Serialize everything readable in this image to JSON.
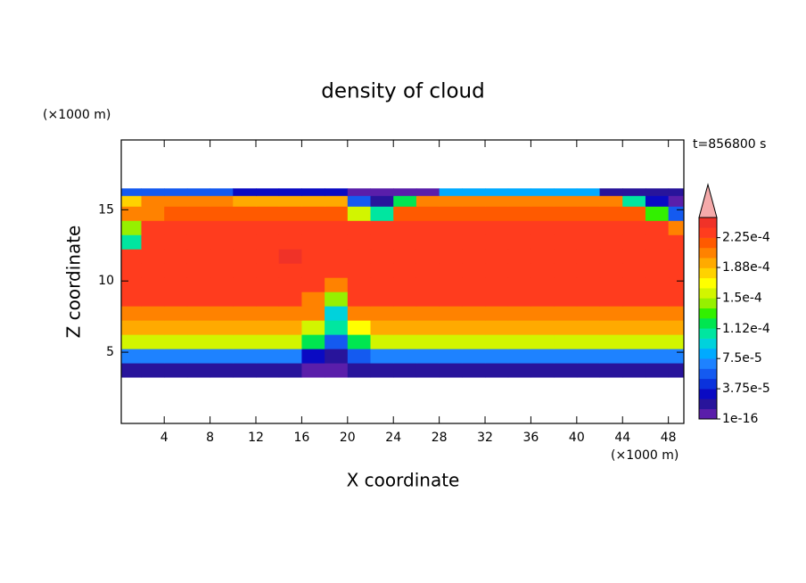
{
  "chart_data": {
    "type": "contour",
    "title": "density of cloud",
    "xlabel": "X coordinate",
    "ylabel": "Z coordinate",
    "xunit": "(×1000 m)",
    "yunit": "(×1000 m)",
    "annotation": "t=856800 s",
    "xlim": [
      0.25,
      49.35
    ],
    "ylim": [
      0,
      19.9
    ],
    "xticks": [
      4,
      8,
      12,
      16,
      20,
      24,
      28,
      32,
      36,
      40,
      44,
      48
    ],
    "yticks": [
      5,
      10,
      15
    ],
    "x": [
      1,
      3,
      5,
      7,
      9,
      11,
      13,
      15,
      17,
      19,
      21,
      23,
      25,
      27,
      29,
      31,
      33,
      35,
      37,
      39,
      41,
      43,
      45,
      47,
      49
    ],
    "y": [
      3.75,
      4.75,
      5.75,
      6.75,
      7.75,
      8.75,
      9.75,
      10.75,
      11.75,
      12.75,
      13.75,
      14.75,
      15.75,
      16.25
    ],
    "values": [
      [
        2e-05,
        2e-05,
        2e-05,
        2e-05,
        2e-05,
        2e-05,
        2e-05,
        2e-05,
        1e-05,
        1e-05,
        2e-05,
        2e-05,
        2e-05,
        2e-05,
        2e-05,
        2e-05,
        2e-05,
        2e-05,
        2e-05,
        2e-05,
        2e-05,
        2e-05,
        2e-05,
        2e-05,
        2e-05
      ],
      [
        7e-05,
        7e-05,
        7e-05,
        7e-05,
        7e-05,
        7e-05,
        7e-05,
        7e-05,
        3e-05,
        2e-05,
        5e-05,
        7e-05,
        7e-05,
        7e-05,
        7e-05,
        7e-05,
        7e-05,
        7e-05,
        7e-05,
        7e-05,
        7e-05,
        7e-05,
        7e-05,
        7e-05,
        7e-05
      ],
      [
        0.00015,
        0.00015,
        0.00015,
        0.00015,
        0.00015,
        0.00015,
        0.00015,
        0.00015,
        0.00012,
        6e-05,
        0.00012,
        0.00015,
        0.00015,
        0.00015,
        0.00015,
        0.00015,
        0.00015,
        0.00015,
        0.00015,
        0.00015,
        0.00015,
        0.00015,
        0.00015,
        0.00015,
        0.00015
      ],
      [
        0.00019,
        0.00019,
        0.00019,
        0.00019,
        0.00019,
        0.00019,
        0.00019,
        0.00019,
        0.00016,
        0.0001,
        0.00017,
        0.00019,
        0.00019,
        0.00019,
        0.00019,
        0.00019,
        0.00019,
        0.00019,
        0.00019,
        0.00019,
        0.00019,
        0.00019,
        0.00019,
        0.00019,
        0.00019
      ],
      [
        0.00021,
        0.00021,
        0.00021,
        0.00021,
        0.00021,
        0.00021,
        0.00021,
        0.00021,
        0.0002,
        9e-05,
        0.00021,
        0.00021,
        0.00021,
        0.00021,
        0.00021,
        0.00021,
        0.00021,
        0.00021,
        0.00021,
        0.00021,
        0.00021,
        0.00021,
        0.00021,
        0.00021,
        0.00021
      ],
      [
        0.000225,
        0.000225,
        0.000225,
        0.000225,
        0.000225,
        0.000225,
        0.000225,
        0.000225,
        0.00021,
        0.00014,
        0.000225,
        0.000225,
        0.000225,
        0.000225,
        0.000225,
        0.000225,
        0.000225,
        0.000225,
        0.000225,
        0.000225,
        0.000225,
        0.000225,
        0.000225,
        0.000225,
        0.000225
      ],
      [
        0.00023,
        0.00023,
        0.00023,
        0.00023,
        0.00023,
        0.00023,
        0.00023,
        0.00023,
        0.00023,
        0.0002,
        0.00023,
        0.00023,
        0.00023,
        0.00023,
        0.00023,
        0.00023,
        0.00023,
        0.00023,
        0.00023,
        0.00023,
        0.00023,
        0.00023,
        0.00023,
        0.00023,
        0.00023
      ],
      [
        0.00023,
        0.00023,
        0.00023,
        0.00023,
        0.00023,
        0.00023,
        0.00023,
        0.00023,
        0.00023,
        0.00023,
        0.00023,
        0.00023,
        0.00023,
        0.00023,
        0.00023,
        0.00023,
        0.00023,
        0.00023,
        0.00023,
        0.00023,
        0.00023,
        0.00023,
        0.00023,
        0.00023,
        0.00023
      ],
      [
        0.00023,
        0.00023,
        0.00023,
        0.00023,
        0.00023,
        0.00023,
        0.00023,
        0.000245,
        0.00023,
        0.00023,
        0.00023,
        0.00023,
        0.00023,
        0.00023,
        0.00023,
        0.00023,
        0.00023,
        0.00023,
        0.00023,
        0.00023,
        0.00023,
        0.00023,
        0.00023,
        0.00023,
        0.00023
      ],
      [
        0.00011,
        0.00023,
        0.00023,
        0.00023,
        0.00023,
        0.00023,
        0.00023,
        0.00023,
        0.00023,
        0.00023,
        0.00023,
        0.00023,
        0.00023,
        0.00023,
        0.00023,
        0.00023,
        0.00023,
        0.00023,
        0.00023,
        0.00023,
        0.00023,
        0.00023,
        0.00023,
        0.00023,
        0.00023
      ],
      [
        0.00014,
        0.00023,
        0.00023,
        0.00023,
        0.00023,
        0.00023,
        0.00023,
        0.00023,
        0.00023,
        0.00023,
        0.00023,
        0.00023,
        0.00023,
        0.00023,
        0.00023,
        0.00023,
        0.00023,
        0.00023,
        0.00023,
        0.00023,
        0.00023,
        0.00023,
        0.00023,
        0.00023,
        0.0002
      ],
      [
        0.0002,
        0.00021,
        0.00022,
        0.00022,
        0.00022,
        0.00022,
        0.00022,
        0.00022,
        0.00022,
        0.00022,
        0.00015,
        0.0001,
        0.00022,
        0.00022,
        0.00022,
        0.00022,
        0.00022,
        0.00022,
        0.00022,
        0.00022,
        0.00022,
        0.00022,
        0.00022,
        0.00013,
        6e-05
      ],
      [
        0.00018,
        0.0002,
        0.0002,
        0.0002,
        0.0002,
        0.00019,
        0.00019,
        0.00019,
        0.00019,
        0.00019,
        6e-05,
        2e-05,
        0.00012,
        0.0002,
        0.0002,
        0.0002,
        0.0002,
        0.0002,
        0.0002,
        0.0002,
        0.0002,
        0.0002,
        0.0001,
        3e-05,
        1e-05
      ],
      [
        6e-05,
        6e-05,
        6e-05,
        6e-05,
        6e-05,
        3e-05,
        3e-05,
        3e-05,
        3e-05,
        3e-05,
        1e-05,
        1e-05,
        1e-05,
        1e-05,
        8e-05,
        8e-05,
        8e-05,
        8e-05,
        8e-05,
        8e-05,
        8e-05,
        2e-05,
        2e-05,
        2e-05,
        2e-05
      ]
    ],
    "levels": [
      1e-16,
      1.25e-05,
      2.5e-05,
      3.75e-05,
      5e-05,
      6.25e-05,
      7.5e-05,
      8.75e-05,
      0.0001,
      0.0001125,
      0.000125,
      0.0001375,
      0.00015,
      0.0001625,
      0.000175,
      0.0001875,
      0.0002,
      0.0002125,
      0.000225,
      0.0002375,
      0.00025
    ],
    "colors": [
      "#5a1eaa",
      "#28149b",
      "#0a0ac3",
      "#0a32dc",
      "#145af0",
      "#1e82ff",
      "#00aaff",
      "#00d2dc",
      "#00e6a0",
      "#00e650",
      "#32f000",
      "#96f000",
      "#d2f500",
      "#ffff00",
      "#ffd200",
      "#ffaa00",
      "#ff8200",
      "#ff5a00",
      "#ff3c1e",
      "#f03228",
      "#f5aaaa"
    ],
    "colorbar_ticks": [
      {
        "value": 1e-16,
        "label": "1e-16"
      },
      {
        "value": 3.75e-05,
        "label": "3.75e-5"
      },
      {
        "value": 7.5e-05,
        "label": "7.5e-5"
      },
      {
        "value": 0.000112,
        "label": "1.12e-4"
      },
      {
        "value": 0.00015,
        "label": "1.5e-4"
      },
      {
        "value": 0.000188,
        "label": "1.88e-4"
      },
      {
        "value": 0.000225,
        "label": "2.25e-4"
      }
    ]
  }
}
